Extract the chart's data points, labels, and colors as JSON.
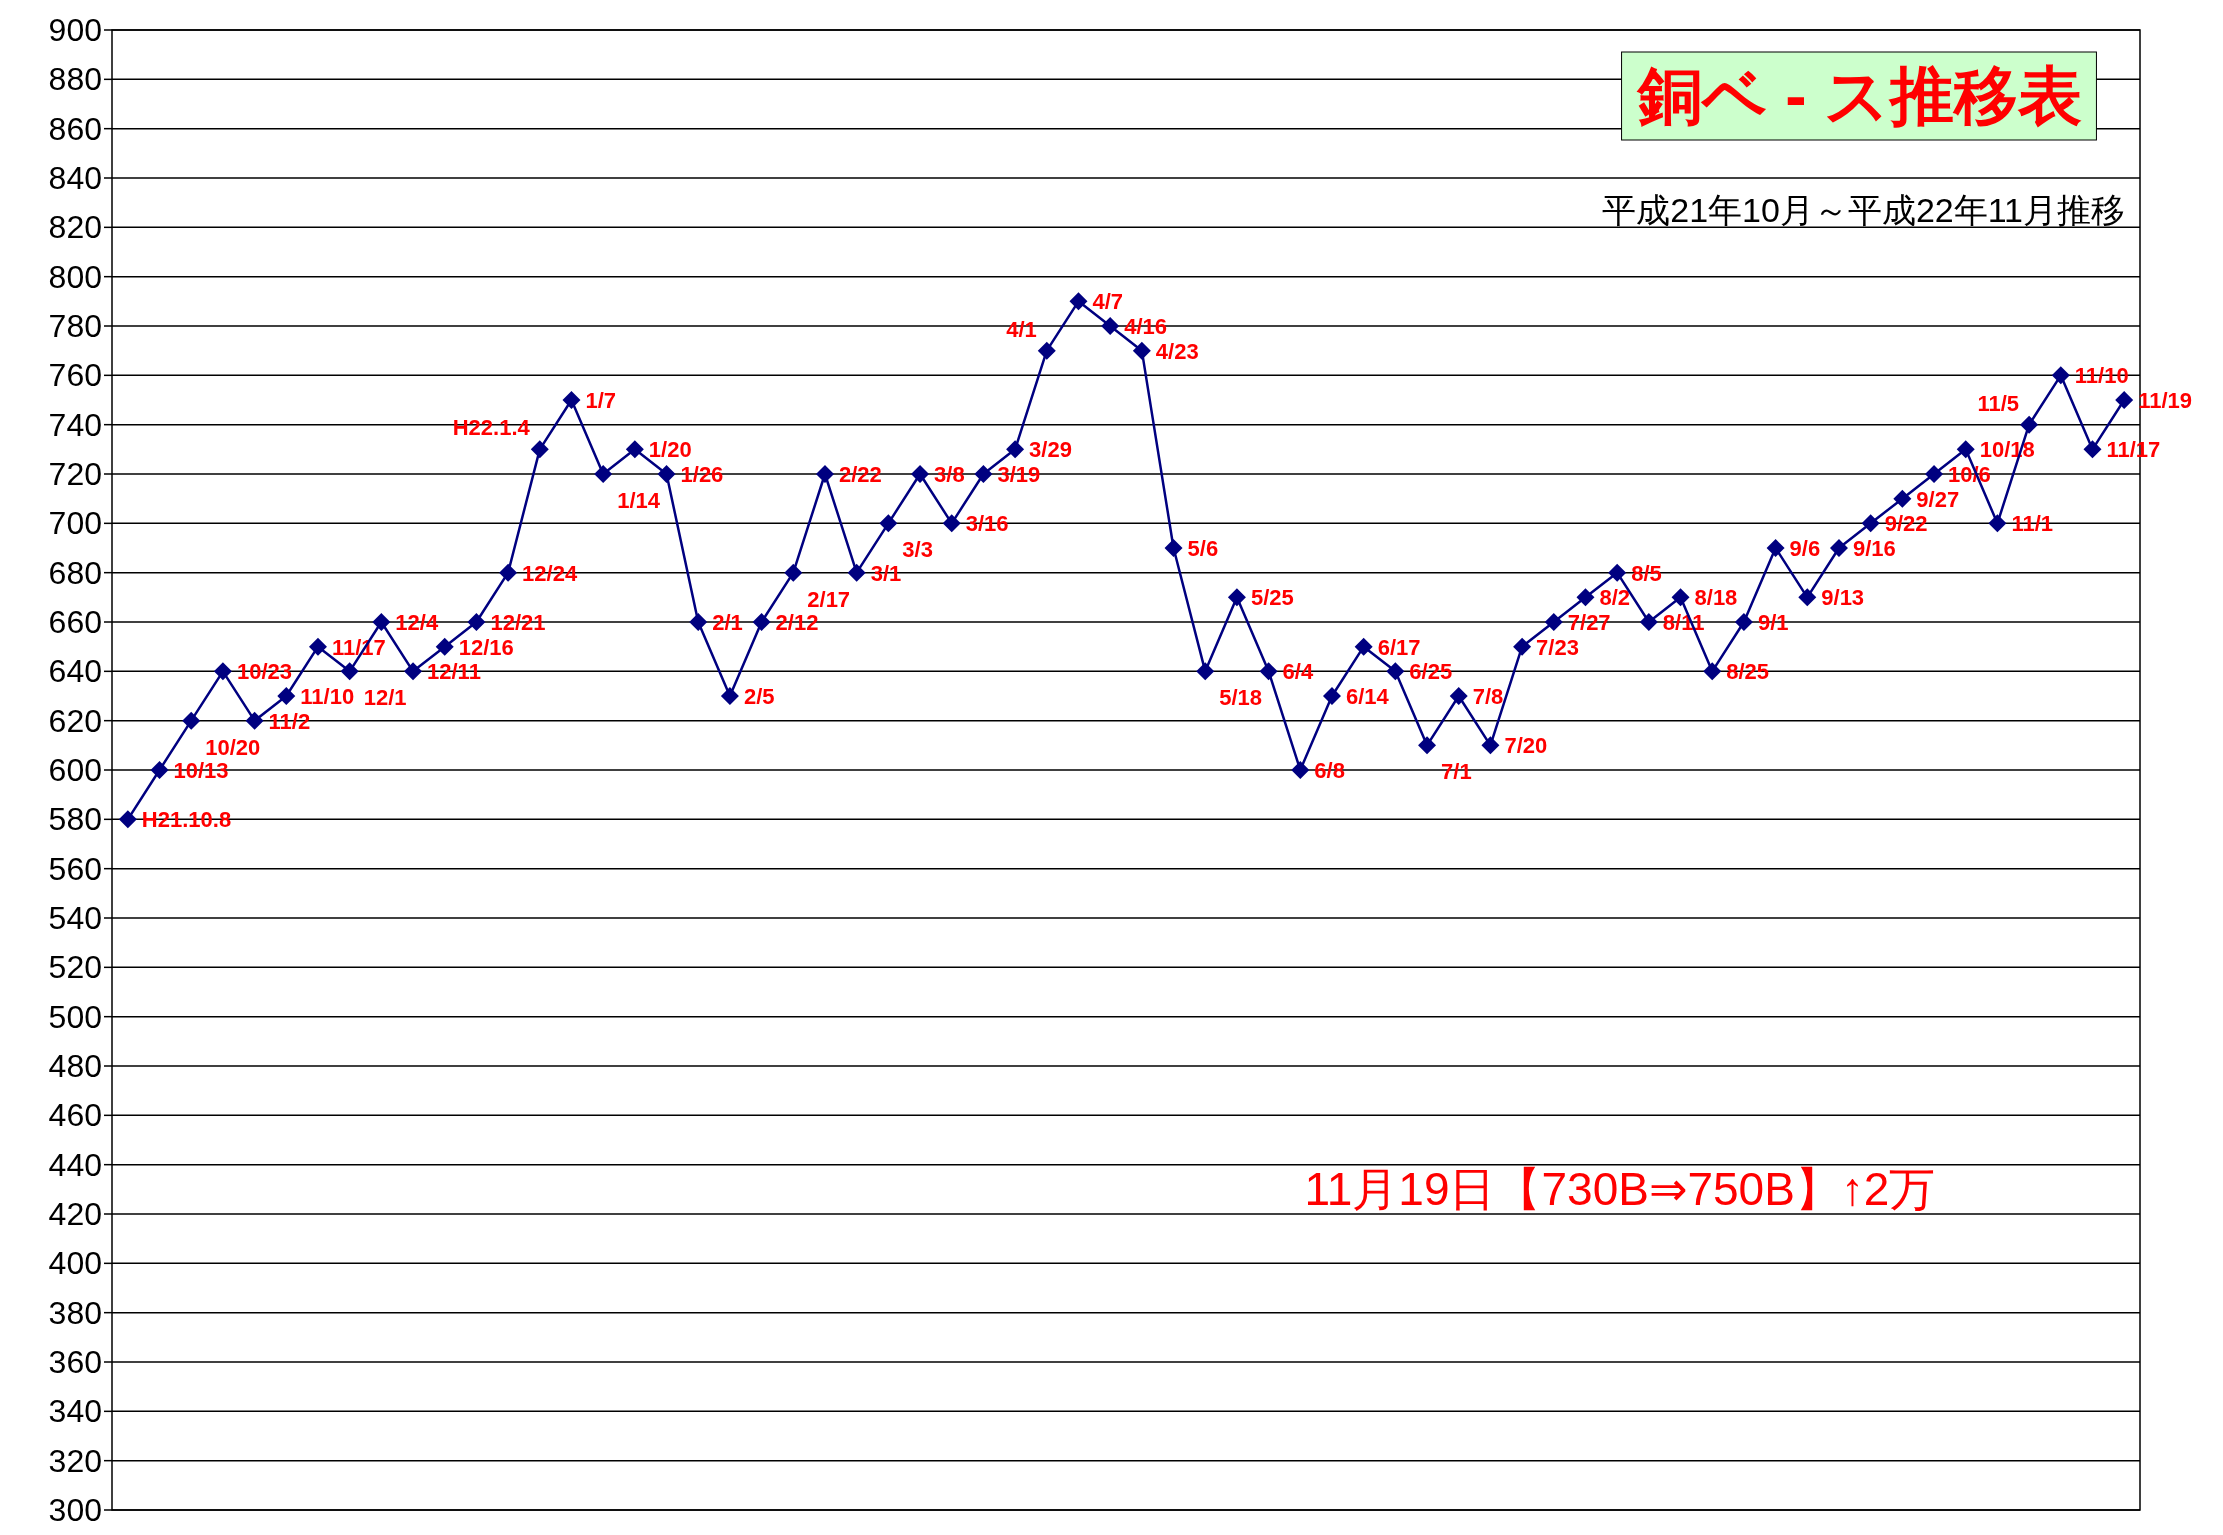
{
  "chart_data": {
    "type": "line",
    "title": "銅ベ - ス推移表",
    "subtitle": "平成21年10月～平成22年11月推移",
    "annotations": [
      "11月19日【730B⇒750B】↑2万",
      "H21.10.8",
      "10/13",
      "10/20",
      "10/23",
      "11/2",
      "11/10",
      "11/17",
      "12/1",
      "12/4",
      "12/11",
      "12/16",
      "12/21",
      "12/24",
      "H22.1.4",
      "1/7",
      "1/14",
      "1/20",
      "1/26",
      "2/1",
      "2/5",
      "2/12",
      "2/17",
      "2/22",
      "3/1",
      "3/3",
      "3/8",
      "3/16",
      "3/19",
      "3/29",
      "4/1",
      "4/7",
      "4/16",
      "4/23",
      "5/6",
      "5/18",
      "5/25",
      "6/4",
      "6/8",
      "6/14",
      "6/17",
      "6/25",
      "7/1",
      "7/8",
      "7/20",
      "7/23",
      "7/27",
      "8/2",
      "8/5",
      "8/11",
      "8/18",
      "8/25",
      "9/1",
      "9/6",
      "9/13",
      "9/16",
      "9/22",
      "9/27",
      "10/6",
      "10/18",
      "11/1",
      "11/5",
      "11/10",
      "11/17",
      "11/19"
    ],
    "categories": [
      null,
      null,
      null,
      null,
      null,
      null,
      null,
      null,
      null,
      null,
      null,
      null,
      null,
      null,
      null,
      null,
      null,
      null,
      null,
      null,
      null,
      null,
      null,
      null,
      null,
      null,
      null,
      null,
      null,
      null,
      null,
      null,
      null,
      null,
      null,
      null,
      null,
      null,
      null,
      null,
      null,
      null,
      null,
      null,
      null,
      null,
      null,
      null,
      null,
      null,
      null,
      null,
      null,
      null,
      null,
      null,
      null,
      null,
      null,
      null,
      null,
      null,
      null,
      null
    ],
    "series": [
      {
        "color": "#000080",
        "values": [
          580,
          600,
          620,
          640,
          620,
          630,
          650,
          640,
          660,
          640,
          650,
          660,
          680,
          730,
          750,
          720,
          730,
          720,
          660,
          630,
          660,
          680,
          720,
          680,
          700,
          720,
          700,
          720,
          730,
          770,
          790,
          780,
          770,
          690,
          640,
          670,
          640,
          600,
          630,
          650,
          640,
          610,
          630,
          610,
          650,
          660,
          670,
          680,
          660,
          670,
          640,
          660,
          690,
          670,
          690,
          700,
          710,
          720,
          730,
          700,
          740,
          760,
          730,
          750
        ]
      }
    ],
    "marker": "diamond",
    "grid": "y",
    "tick_labels": "y",
    "ylim": [
      300,
      900
    ],
    "yticks": [
      300,
      320,
      340,
      360,
      380,
      400,
      420,
      440,
      460,
      480,
      500,
      520,
      540,
      560,
      580,
      600,
      620,
      640,
      660,
      680,
      700,
      720,
      740,
      760,
      780,
      800,
      820,
      840,
      860,
      880,
      900
    ]
  }
}
